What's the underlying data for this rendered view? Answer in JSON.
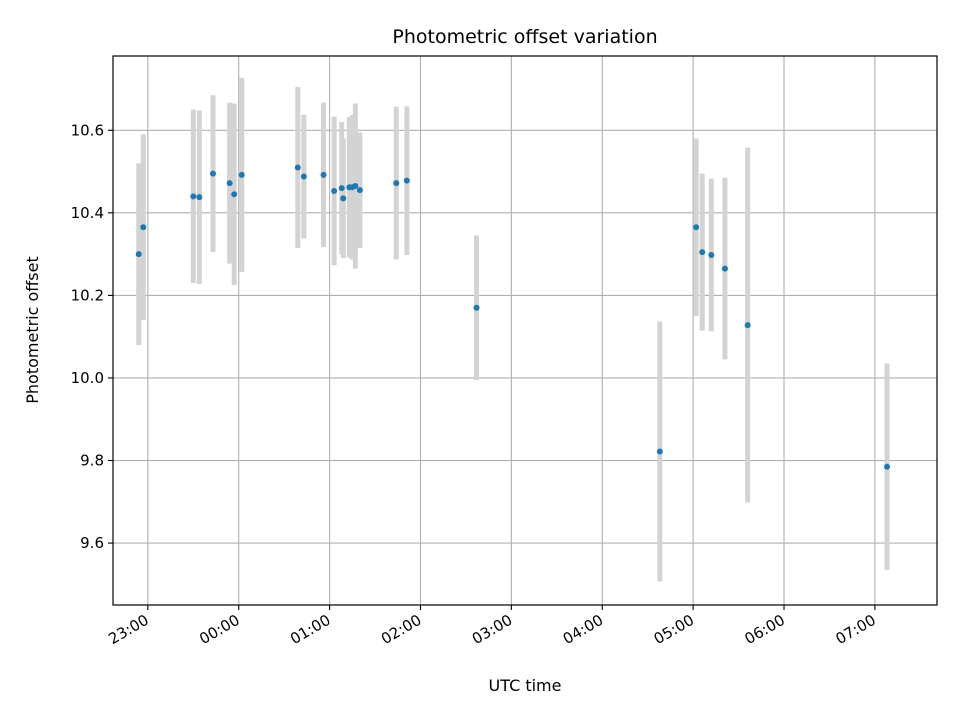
{
  "chart_data": {
    "type": "scatter",
    "title": "Photometric offset variation",
    "xlabel": "UTC time",
    "ylabel": "Photometric offset",
    "x_ticks": [
      "23:00",
      "00:00",
      "01:00",
      "02:00",
      "03:00",
      "04:00",
      "05:00",
      "06:00",
      "07:00"
    ],
    "y_ticks": [
      "9.6",
      "9.8",
      "10.0",
      "10.2",
      "10.4",
      "10.6"
    ],
    "xlim": [
      "22:37",
      "07:41"
    ],
    "ylim": [
      9.45,
      10.78
    ],
    "grid": true,
    "colors": {
      "point": "#1f77b4",
      "errorbar": "#d3d3d3",
      "grid": "#b0b0b0"
    },
    "points": [
      {
        "x": "22:54",
        "y": 10.3,
        "yerr": 0.22
      },
      {
        "x": "22:57",
        "y": 10.365,
        "yerr": 0.225
      },
      {
        "x": "23:30",
        "y": 10.44,
        "yerr": 0.21
      },
      {
        "x": "23:34",
        "y": 10.438,
        "yerr": 0.21
      },
      {
        "x": "23:43",
        "y": 10.495,
        "yerr": 0.19
      },
      {
        "x": "23:54",
        "y": 10.472,
        "yerr": 0.195
      },
      {
        "x": "23:57",
        "y": 10.445,
        "yerr": 0.22
      },
      {
        "x": "00:02",
        "y": 10.492,
        "yerr": 0.235
      },
      {
        "x": "00:39",
        "y": 10.51,
        "yerr": 0.195
      },
      {
        "x": "00:43",
        "y": 10.488,
        "yerr": 0.15
      },
      {
        "x": "00:56",
        "y": 10.492,
        "yerr": 0.175
      },
      {
        "x": "01:03",
        "y": 10.453,
        "yerr": 0.18
      },
      {
        "x": "01:08",
        "y": 10.46,
        "yerr": 0.16
      },
      {
        "x": "01:09",
        "y": 10.435,
        "yerr": 0.145
      },
      {
        "x": "01:13",
        "y": 10.462,
        "yerr": 0.17
      },
      {
        "x": "01:15",
        "y": 10.462,
        "yerr": 0.175
      },
      {
        "x": "01:17",
        "y": 10.465,
        "yerr": 0.2
      },
      {
        "x": "01:20",
        "y": 10.455,
        "yerr": 0.14
      },
      {
        "x": "01:44",
        "y": 10.472,
        "yerr": 0.185
      },
      {
        "x": "01:51",
        "y": 10.478,
        "yerr": 0.18
      },
      {
        "x": "02:37",
        "y": 10.17,
        "yerr": 0.175
      },
      {
        "x": "04:38",
        "y": 9.822,
        "yerr": 0.315
      },
      {
        "x": "05:02",
        "y": 10.365,
        "yerr": 0.215
      },
      {
        "x": "05:06",
        "y": 10.305,
        "yerr": 0.19
      },
      {
        "x": "05:12",
        "y": 10.298,
        "yerr": 0.185
      },
      {
        "x": "05:21",
        "y": 10.265,
        "yerr": 0.22
      },
      {
        "x": "05:36",
        "y": 10.128,
        "yerr": 0.43
      },
      {
        "x": "07:08",
        "y": 9.785,
        "yerr": 0.25
      }
    ]
  }
}
